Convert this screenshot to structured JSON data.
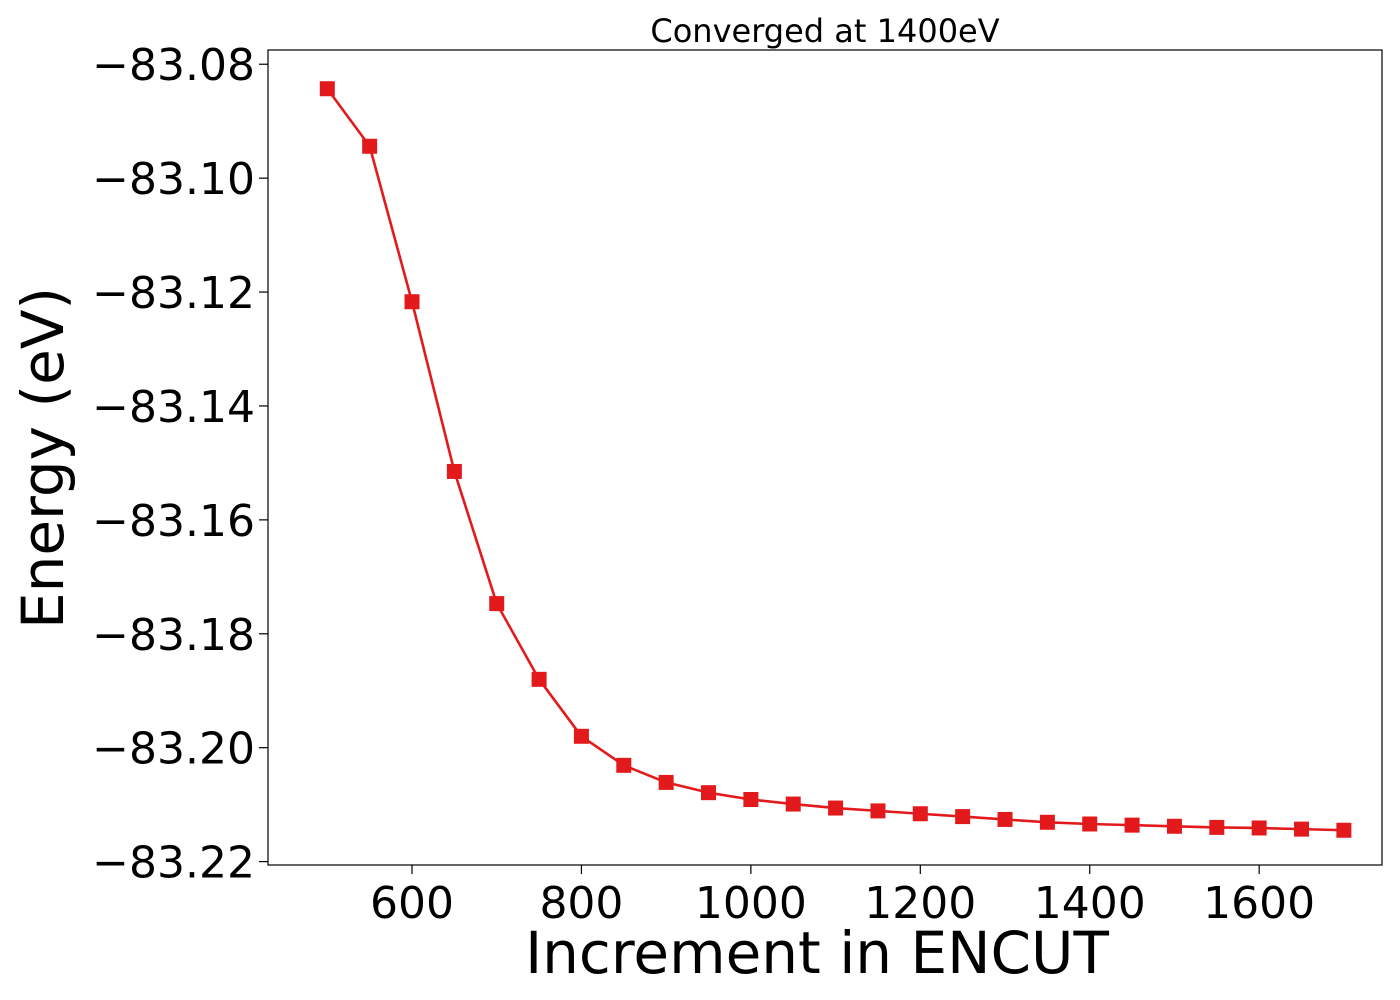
{
  "chart_data": {
    "type": "line",
    "title": "Converged at 1400eV",
    "xlabel": "Increment in ENCUT",
    "ylabel": "Energy (eV)",
    "xlim": [
      430,
      1745
    ],
    "ylim": [
      -83.2206,
      -83.0775
    ],
    "xticks": [
      600,
      800,
      1000,
      1200,
      1400,
      1600
    ],
    "xtick_labels": [
      "600",
      "800",
      "1000",
      "1200",
      "1400",
      "1600"
    ],
    "yticks": [
      -83.08,
      -83.1,
      -83.12,
      -83.14,
      -83.16,
      -83.18,
      -83.2,
      -83.22
    ],
    "ytick_labels": [
      "−83.08",
      "−83.10",
      "−83.12",
      "−83.14",
      "−83.16",
      "−83.18",
      "−83.20",
      "−83.22"
    ],
    "grid": false,
    "series": [
      {
        "color": "#e31a1c",
        "marker": "square",
        "x": [
          500,
          550,
          600,
          650,
          700,
          750,
          800,
          850,
          900,
          950,
          1000,
          1050,
          1100,
          1150,
          1200,
          1250,
          1300,
          1350,
          1400,
          1450,
          1500,
          1550,
          1600,
          1650,
          1700
        ],
        "y": [
          -83.0843,
          -83.0944,
          -83.1217,
          -83.1515,
          -83.1747,
          -83.188,
          -83.198,
          -83.2031,
          -83.2061,
          -83.2079,
          -83.2091,
          -83.2099,
          -83.2106,
          -83.2111,
          -83.2116,
          -83.2121,
          -83.2126,
          -83.2131,
          -83.2134,
          -83.2136,
          -83.2138,
          -83.214,
          -83.2141,
          -83.2143,
          -83.2145
        ]
      }
    ]
  }
}
